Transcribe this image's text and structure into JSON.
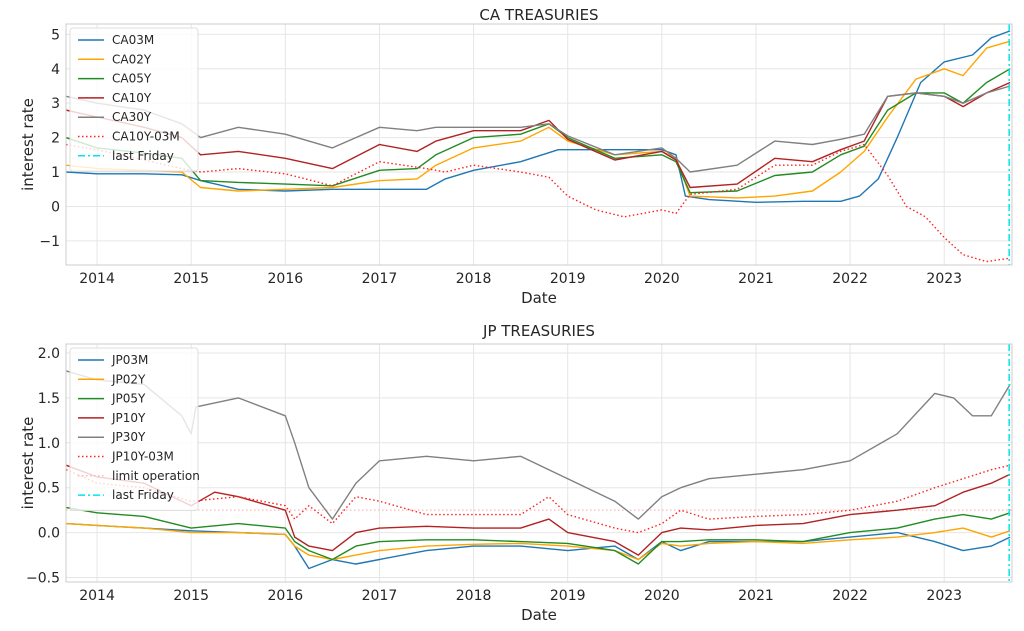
{
  "chart_data": [
    {
      "type": "line",
      "title": "CA TREASURIES",
      "xlabel": "Date",
      "ylabel": "interest rate",
      "xlim": [
        2013.67,
        2023.72
      ],
      "ylim": [
        -1.7,
        5.3
      ],
      "xticks": [
        2014,
        2015,
        2016,
        2017,
        2018,
        2019,
        2020,
        2021,
        2022,
        2023
      ],
      "xtick_labels": [
        "2014",
        "2015",
        "2016",
        "2017",
        "2018",
        "2019",
        "2020",
        "2021",
        "2022",
        "2023"
      ],
      "yticks": [
        -1,
        0,
        1,
        2,
        3,
        4,
        5
      ],
      "ytick_labels": [
        "−1",
        "0",
        "1",
        "2",
        "3",
        "4",
        "5"
      ],
      "grid": true,
      "legend_position": "upper-left",
      "vline": {
        "name": "last Friday",
        "x": 2023.69,
        "color": "#00e5ee",
        "style": "dashdot"
      },
      "series": [
        {
          "name": "CA03M",
          "color": "#1f77b4",
          "style": "solid",
          "x": [
            2013.67,
            2014.0,
            2014.5,
            2014.9,
            2015.1,
            2015.5,
            2016.0,
            2016.5,
            2017.0,
            2017.5,
            2017.7,
            2018.0,
            2018.5,
            2018.9,
            2019.5,
            2020.0,
            2020.15,
            2020.25,
            2020.5,
            2021.0,
            2021.5,
            2021.9,
            2022.1,
            2022.3,
            2022.5,
            2022.75,
            2023.0,
            2023.3,
            2023.5,
            2023.7
          ],
          "y": [
            1.0,
            0.95,
            0.95,
            0.92,
            0.75,
            0.5,
            0.45,
            0.5,
            0.5,
            0.5,
            0.8,
            1.05,
            1.3,
            1.65,
            1.65,
            1.65,
            1.5,
            0.3,
            0.2,
            0.12,
            0.15,
            0.15,
            0.3,
            0.8,
            2.0,
            3.6,
            4.2,
            4.4,
            4.9,
            5.1
          ]
        },
        {
          "name": "CA02Y",
          "color": "#ffa500",
          "style": "solid",
          "x": [
            2013.67,
            2014.0,
            2014.5,
            2014.9,
            2015.1,
            2015.5,
            2016.0,
            2016.5,
            2017.0,
            2017.4,
            2017.6,
            2018.0,
            2018.5,
            2018.8,
            2019.0,
            2019.5,
            2020.0,
            2020.15,
            2020.3,
            2020.8,
            2021.2,
            2021.6,
            2021.9,
            2022.15,
            2022.4,
            2022.7,
            2023.0,
            2023.2,
            2023.45,
            2023.7
          ],
          "y": [
            1.2,
            1.1,
            1.05,
            1.0,
            0.55,
            0.45,
            0.5,
            0.55,
            0.75,
            0.8,
            1.2,
            1.7,
            1.9,
            2.3,
            1.9,
            1.5,
            1.6,
            1.4,
            0.3,
            0.25,
            0.3,
            0.45,
            1.0,
            1.6,
            2.6,
            3.7,
            4.0,
            3.8,
            4.6,
            4.8
          ]
        },
        {
          "name": "CA05Y",
          "color": "#228b22",
          "style": "solid",
          "x": [
            2013.67,
            2014.0,
            2014.5,
            2014.9,
            2015.1,
            2015.5,
            2016.0,
            2016.5,
            2017.0,
            2017.4,
            2017.6,
            2018.0,
            2018.5,
            2018.8,
            2019.0,
            2019.5,
            2020.0,
            2020.15,
            2020.3,
            2020.8,
            2021.2,
            2021.6,
            2021.9,
            2022.15,
            2022.4,
            2022.7,
            2023.0,
            2023.2,
            2023.45,
            2023.7
          ],
          "y": [
            2.0,
            1.7,
            1.55,
            1.4,
            0.75,
            0.7,
            0.65,
            0.6,
            1.05,
            1.1,
            1.5,
            2.0,
            2.1,
            2.4,
            2.0,
            1.4,
            1.5,
            1.3,
            0.4,
            0.45,
            0.9,
            1.0,
            1.5,
            1.75,
            2.8,
            3.3,
            3.3,
            3.0,
            3.6,
            4.0
          ]
        },
        {
          "name": "CA10Y",
          "color": "#b22222",
          "style": "solid",
          "x": [
            2013.67,
            2014.0,
            2014.5,
            2014.9,
            2015.1,
            2015.5,
            2016.0,
            2016.5,
            2017.0,
            2017.4,
            2017.6,
            2018.0,
            2018.5,
            2018.8,
            2019.0,
            2019.5,
            2020.0,
            2020.15,
            2020.3,
            2020.8,
            2021.2,
            2021.6,
            2021.9,
            2022.15,
            2022.4,
            2022.7,
            2023.0,
            2023.2,
            2023.45,
            2023.7
          ],
          "y": [
            2.8,
            2.6,
            2.3,
            2.0,
            1.5,
            1.6,
            1.4,
            1.1,
            1.8,
            1.6,
            1.9,
            2.2,
            2.2,
            2.5,
            1.95,
            1.35,
            1.6,
            1.35,
            0.55,
            0.65,
            1.4,
            1.3,
            1.65,
            1.9,
            3.2,
            3.3,
            3.2,
            2.9,
            3.3,
            3.6
          ]
        },
        {
          "name": "CA30Y",
          "color": "#808080",
          "style": "solid",
          "x": [
            2013.67,
            2014.0,
            2014.5,
            2014.9,
            2015.1,
            2015.5,
            2016.0,
            2016.5,
            2017.0,
            2017.4,
            2017.6,
            2018.0,
            2018.5,
            2018.8,
            2019.0,
            2019.5,
            2020.0,
            2020.15,
            2020.3,
            2020.8,
            2021.2,
            2021.6,
            2021.9,
            2022.15,
            2022.4,
            2022.7,
            2023.0,
            2023.2,
            2023.45,
            2023.7
          ],
          "y": [
            3.2,
            3.0,
            2.8,
            2.4,
            2.0,
            2.3,
            2.1,
            1.7,
            2.3,
            2.2,
            2.3,
            2.3,
            2.3,
            2.4,
            2.05,
            1.5,
            1.7,
            1.4,
            1.0,
            1.2,
            1.9,
            1.8,
            1.95,
            2.1,
            3.2,
            3.3,
            3.2,
            3.0,
            3.3,
            3.5
          ]
        },
        {
          "name": "CA10Y-03M",
          "color": "#ff2020",
          "style": "dotted",
          "x": [
            2013.67,
            2014.0,
            2014.5,
            2014.9,
            2015.1,
            2015.5,
            2016.0,
            2016.5,
            2017.0,
            2017.5,
            2017.7,
            2018.0,
            2018.5,
            2018.8,
            2019.0,
            2019.3,
            2019.6,
            2019.8,
            2020.0,
            2020.15,
            2020.3,
            2020.8,
            2021.2,
            2021.6,
            2021.9,
            2022.15,
            2022.4,
            2022.6,
            2022.8,
            2023.0,
            2023.2,
            2023.45,
            2023.7
          ],
          "y": [
            1.8,
            1.65,
            1.35,
            1.1,
            1.0,
            1.1,
            0.95,
            0.6,
            1.3,
            1.1,
            1.0,
            1.2,
            1.0,
            0.85,
            0.3,
            -0.1,
            -0.3,
            -0.2,
            -0.1,
            -0.2,
            0.35,
            0.5,
            1.2,
            1.2,
            1.6,
            1.8,
            0.9,
            0.0,
            -0.3,
            -0.9,
            -1.4,
            -1.6,
            -1.5
          ]
        }
      ]
    },
    {
      "type": "line",
      "title": "JP TREASURIES",
      "xlabel": "Date",
      "ylabel": "interest rate",
      "xlim": [
        2013.67,
        2023.72
      ],
      "ylim": [
        -0.55,
        2.1
      ],
      "xticks": [
        2014,
        2015,
        2016,
        2017,
        2018,
        2019,
        2020,
        2021,
        2022,
        2023
      ],
      "xtick_labels": [
        "2014",
        "2015",
        "2016",
        "2017",
        "2018",
        "2019",
        "2020",
        "2021",
        "2022",
        "2023"
      ],
      "yticks": [
        -0.5,
        0.0,
        0.5,
        1.0,
        1.5,
        2.0
      ],
      "ytick_labels": [
        "−0.5",
        "0.0",
        "0.5",
        "1.0",
        "1.5",
        "2.0"
      ],
      "grid": true,
      "legend_position": "upper-left",
      "hline": {
        "name": "limit operation",
        "y": 0.25,
        "color": "#ffb6b6",
        "style": "dotted"
      },
      "vline": {
        "name": "last Friday",
        "x": 2023.69,
        "color": "#00e5ee",
        "style": "dashdot"
      },
      "series": [
        {
          "name": "JP03M",
          "color": "#1f77b4",
          "style": "solid",
          "x": [
            2013.67,
            2014.0,
            2014.5,
            2015.0,
            2015.5,
            2016.0,
            2016.1,
            2016.25,
            2016.5,
            2016.75,
            2017.0,
            2017.5,
            2018.0,
            2018.5,
            2019.0,
            2019.5,
            2019.75,
            2020.0,
            2020.2,
            2020.5,
            2021.0,
            2021.5,
            2022.0,
            2022.5,
            2022.9,
            2023.2,
            2023.5,
            2023.7
          ],
          "y": [
            0.1,
            0.08,
            0.05,
            0.02,
            0.0,
            -0.02,
            -0.15,
            -0.4,
            -0.3,
            -0.35,
            -0.3,
            -0.2,
            -0.15,
            -0.15,
            -0.2,
            -0.15,
            -0.3,
            -0.1,
            -0.2,
            -0.1,
            -0.1,
            -0.1,
            -0.05,
            0.0,
            -0.1,
            -0.2,
            -0.15,
            -0.05
          ]
        },
        {
          "name": "JP02Y",
          "color": "#ffa500",
          "style": "solid",
          "x": [
            2013.67,
            2014.0,
            2014.5,
            2015.0,
            2015.5,
            2016.0,
            2016.1,
            2016.25,
            2016.5,
            2016.75,
            2017.0,
            2017.5,
            2018.0,
            2018.5,
            2019.0,
            2019.5,
            2019.75,
            2020.0,
            2020.2,
            2020.5,
            2021.0,
            2021.5,
            2022.0,
            2022.5,
            2022.9,
            2023.2,
            2023.5,
            2023.7
          ],
          "y": [
            0.1,
            0.08,
            0.05,
            0.0,
            0.0,
            -0.02,
            -0.15,
            -0.25,
            -0.3,
            -0.25,
            -0.2,
            -0.15,
            -0.13,
            -0.12,
            -0.15,
            -0.2,
            -0.3,
            -0.12,
            -0.15,
            -0.12,
            -0.1,
            -0.12,
            -0.08,
            -0.05,
            0.0,
            0.05,
            -0.05,
            0.02
          ]
        },
        {
          "name": "JP05Y",
          "color": "#228b22",
          "style": "solid",
          "x": [
            2013.67,
            2014.0,
            2014.5,
            2015.0,
            2015.5,
            2016.0,
            2016.1,
            2016.25,
            2016.5,
            2016.75,
            2017.0,
            2017.5,
            2018.0,
            2018.5,
            2019.0,
            2019.5,
            2019.75,
            2020.0,
            2020.2,
            2020.5,
            2021.0,
            2021.5,
            2022.0,
            2022.5,
            2022.9,
            2023.2,
            2023.5,
            2023.7
          ],
          "y": [
            0.28,
            0.22,
            0.18,
            0.05,
            0.1,
            0.05,
            -0.1,
            -0.2,
            -0.3,
            -0.15,
            -0.1,
            -0.08,
            -0.08,
            -0.1,
            -0.12,
            -0.2,
            -0.35,
            -0.1,
            -0.1,
            -0.08,
            -0.08,
            -0.1,
            0.0,
            0.05,
            0.15,
            0.2,
            0.15,
            0.22
          ]
        },
        {
          "name": "JP10Y",
          "color": "#b22222",
          "style": "solid",
          "x": [
            2013.67,
            2014.0,
            2014.5,
            2014.9,
            2015.0,
            2015.25,
            2015.5,
            2016.0,
            2016.1,
            2016.25,
            2016.5,
            2016.75,
            2017.0,
            2017.5,
            2018.0,
            2018.5,
            2018.8,
            2019.0,
            2019.5,
            2019.75,
            2020.0,
            2020.2,
            2020.5,
            2021.0,
            2021.5,
            2022.0,
            2022.5,
            2022.9,
            2023.2,
            2023.5,
            2023.7
          ],
          "y": [
            0.75,
            0.62,
            0.55,
            0.35,
            0.3,
            0.45,
            0.4,
            0.25,
            -0.05,
            -0.15,
            -0.2,
            0.0,
            0.05,
            0.07,
            0.05,
            0.05,
            0.15,
            0.0,
            -0.1,
            -0.25,
            0.0,
            0.05,
            0.03,
            0.08,
            0.1,
            0.2,
            0.25,
            0.3,
            0.45,
            0.55,
            0.65
          ]
        },
        {
          "name": "JP30Y",
          "color": "#808080",
          "style": "solid",
          "x": [
            2013.67,
            2014.0,
            2014.5,
            2014.9,
            2015.0,
            2015.05,
            2015.5,
            2016.0,
            2016.1,
            2016.25,
            2016.5,
            2016.75,
            2017.0,
            2017.5,
            2018.0,
            2018.5,
            2019.0,
            2019.5,
            2019.75,
            2020.0,
            2020.2,
            2020.5,
            2021.0,
            2021.5,
            2022.0,
            2022.5,
            2022.9,
            2023.1,
            2023.3,
            2023.5,
            2023.7
          ],
          "y": [
            1.8,
            1.7,
            1.65,
            1.3,
            1.1,
            1.4,
            1.5,
            1.3,
            1.0,
            0.5,
            0.15,
            0.55,
            0.8,
            0.85,
            0.8,
            0.85,
            0.6,
            0.35,
            0.15,
            0.4,
            0.5,
            0.6,
            0.65,
            0.7,
            0.8,
            1.1,
            1.55,
            1.5,
            1.3,
            1.3,
            1.65
          ]
        },
        {
          "name": "JP10Y-03M",
          "color": "#ff2020",
          "style": "dotted",
          "x": [
            2013.67,
            2014.0,
            2014.5,
            2015.0,
            2015.5,
            2016.0,
            2016.1,
            2016.25,
            2016.5,
            2016.75,
            2017.0,
            2017.5,
            2018.0,
            2018.5,
            2018.8,
            2019.0,
            2019.5,
            2019.75,
            2020.0,
            2020.2,
            2020.5,
            2021.0,
            2021.5,
            2022.0,
            2022.5,
            2022.9,
            2023.2,
            2023.5,
            2023.7
          ],
          "y": [
            0.7,
            0.55,
            0.5,
            0.35,
            0.4,
            0.3,
            0.15,
            0.3,
            0.1,
            0.4,
            0.35,
            0.2,
            0.2,
            0.2,
            0.4,
            0.2,
            0.05,
            0.0,
            0.1,
            0.25,
            0.15,
            0.18,
            0.2,
            0.25,
            0.35,
            0.5,
            0.6,
            0.7,
            0.75
          ]
        }
      ]
    }
  ]
}
